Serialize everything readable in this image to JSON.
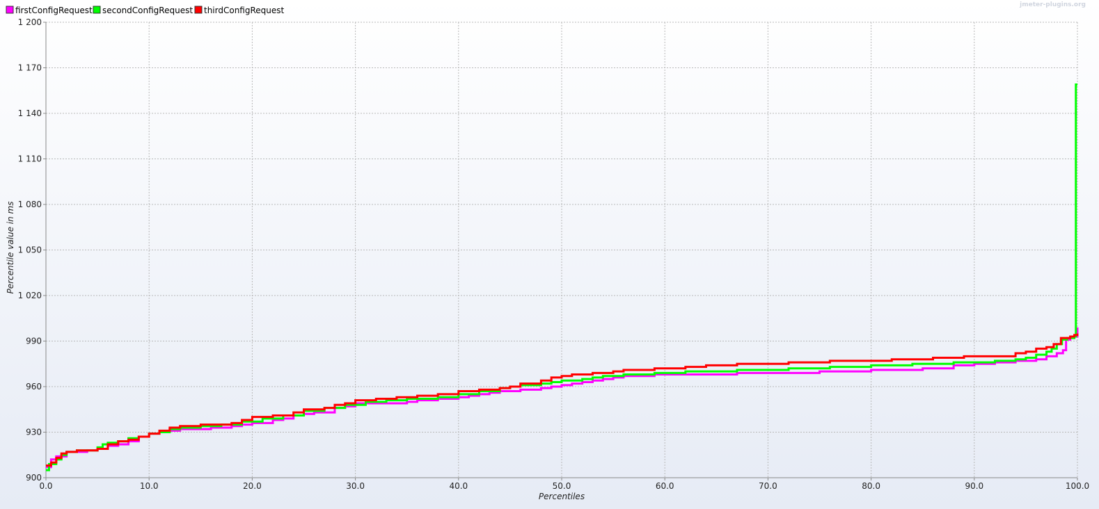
{
  "watermark": "jmeter-plugins.org",
  "chart_data": {
    "type": "line",
    "title": "",
    "xlabel": "Percentiles",
    "ylabel": "Percentile value in ms",
    "xlim": [
      0,
      100
    ],
    "ylim": [
      900,
      1200
    ],
    "x_ticks": [
      "0.0",
      "10.0",
      "20.0",
      "30.0",
      "40.0",
      "50.0",
      "60.0",
      "70.0",
      "80.0",
      "90.0",
      "100.0"
    ],
    "y_ticks": [
      "900",
      "930",
      "960",
      "990",
      "1 020",
      "1 050",
      "1 080",
      "1 110",
      "1 140",
      "1 170",
      "1 200"
    ],
    "x_tick_values": [
      0,
      10,
      20,
      30,
      40,
      50,
      60,
      70,
      80,
      90,
      100
    ],
    "y_tick_values": [
      900,
      930,
      960,
      990,
      1020,
      1050,
      1080,
      1110,
      1140,
      1170,
      1200
    ],
    "grid": true,
    "legend_position": "top-left",
    "series": [
      {
        "name": "firstConfigRequest",
        "color": "#ff00ff",
        "points": [
          [
            0,
            907
          ],
          [
            0.5,
            912
          ],
          [
            1,
            914
          ],
          [
            2,
            917
          ],
          [
            3,
            917
          ],
          [
            4,
            918
          ],
          [
            5,
            919
          ],
          [
            6,
            921
          ],
          [
            7,
            922
          ],
          [
            8,
            924
          ],
          [
            9,
            927
          ],
          [
            10,
            929
          ],
          [
            11,
            930
          ],
          [
            12,
            931
          ],
          [
            13,
            932
          ],
          [
            15,
            932
          ],
          [
            16,
            933
          ],
          [
            18,
            934
          ],
          [
            19,
            935
          ],
          [
            20,
            936
          ],
          [
            22,
            938
          ],
          [
            23,
            939
          ],
          [
            24,
            941
          ],
          [
            25,
            942
          ],
          [
            26,
            943
          ],
          [
            28,
            946
          ],
          [
            29,
            947
          ],
          [
            30,
            949
          ],
          [
            35,
            950
          ],
          [
            36,
            951
          ],
          [
            38,
            952
          ],
          [
            40,
            953
          ],
          [
            41,
            954
          ],
          [
            42,
            955
          ],
          [
            43,
            956
          ],
          [
            44,
            957
          ],
          [
            46,
            958
          ],
          [
            48,
            959
          ],
          [
            49,
            960
          ],
          [
            50,
            961
          ],
          [
            51,
            962
          ],
          [
            52,
            963
          ],
          [
            53,
            964
          ],
          [
            54,
            965
          ],
          [
            55,
            966
          ],
          [
            56,
            967
          ],
          [
            58,
            967
          ],
          [
            59,
            968
          ],
          [
            62,
            968
          ],
          [
            67,
            969
          ],
          [
            75,
            970
          ],
          [
            80,
            971
          ],
          [
            85,
            972
          ],
          [
            88,
            974
          ],
          [
            90,
            975
          ],
          [
            92,
            976
          ],
          [
            94,
            977
          ],
          [
            96,
            978
          ],
          [
            97,
            980
          ],
          [
            98,
            982
          ],
          [
            98.6,
            984
          ],
          [
            98.9,
            991
          ],
          [
            99.3,
            992
          ],
          [
            99.7,
            993
          ],
          [
            100,
            999
          ]
        ]
      },
      {
        "name": "secondConfigRequest",
        "color": "#00ff00",
        "points": [
          [
            0,
            905
          ],
          [
            0.3,
            909
          ],
          [
            1,
            912
          ],
          [
            1.5,
            915
          ],
          [
            2,
            917
          ],
          [
            3,
            918
          ],
          [
            4,
            918
          ],
          [
            5,
            920
          ],
          [
            5.5,
            922
          ],
          [
            6,
            923
          ],
          [
            7,
            924
          ],
          [
            8,
            926
          ],
          [
            9,
            927
          ],
          [
            10,
            929
          ],
          [
            11,
            930
          ],
          [
            12,
            932
          ],
          [
            13,
            933
          ],
          [
            15,
            934
          ],
          [
            17,
            935
          ],
          [
            19,
            937
          ],
          [
            21,
            939
          ],
          [
            23,
            941
          ],
          [
            25,
            944
          ],
          [
            27,
            946
          ],
          [
            29,
            948
          ],
          [
            31,
            950
          ],
          [
            33,
            951
          ],
          [
            35,
            952
          ],
          [
            38,
            953
          ],
          [
            40,
            955
          ],
          [
            42,
            957
          ],
          [
            44,
            959
          ],
          [
            45,
            960
          ],
          [
            46,
            961
          ],
          [
            48,
            962
          ],
          [
            49,
            963
          ],
          [
            50,
            964
          ],
          [
            52,
            965
          ],
          [
            53,
            966
          ],
          [
            54,
            967
          ],
          [
            56,
            968
          ],
          [
            59,
            969
          ],
          [
            62,
            970
          ],
          [
            67,
            971
          ],
          [
            72,
            972
          ],
          [
            76,
            973
          ],
          [
            80,
            974
          ],
          [
            84,
            975
          ],
          [
            88,
            976
          ],
          [
            92,
            977
          ],
          [
            94,
            978
          ],
          [
            95,
            979
          ],
          [
            96,
            981
          ],
          [
            97,
            983
          ],
          [
            97.5,
            985
          ],
          [
            98,
            988
          ],
          [
            98.5,
            991
          ],
          [
            99,
            992
          ],
          [
            99.7,
            993
          ],
          [
            99.85,
            1159
          ],
          [
            100,
            1159
          ]
        ]
      },
      {
        "name": "thirdConfigRequest",
        "color": "#ff0000",
        "points": [
          [
            0,
            908
          ],
          [
            0.5,
            910
          ],
          [
            1,
            913
          ],
          [
            1.5,
            916
          ],
          [
            2,
            917
          ],
          [
            3,
            918
          ],
          [
            4,
            918
          ],
          [
            5,
            919
          ],
          [
            6,
            922
          ],
          [
            7,
            924
          ],
          [
            8,
            925
          ],
          [
            9,
            927
          ],
          [
            10,
            929
          ],
          [
            11,
            931
          ],
          [
            12,
            933
          ],
          [
            13,
            934
          ],
          [
            15,
            935
          ],
          [
            18,
            936
          ],
          [
            19,
            938
          ],
          [
            20,
            940
          ],
          [
            22,
            941
          ],
          [
            24,
            943
          ],
          [
            25,
            945
          ],
          [
            27,
            946
          ],
          [
            28,
            948
          ],
          [
            29,
            949
          ],
          [
            30,
            951
          ],
          [
            32,
            952
          ],
          [
            34,
            953
          ],
          [
            36,
            954
          ],
          [
            38,
            955
          ],
          [
            40,
            957
          ],
          [
            42,
            958
          ],
          [
            44,
            959
          ],
          [
            45,
            960
          ],
          [
            46,
            962
          ],
          [
            48,
            964
          ],
          [
            49,
            966
          ],
          [
            50,
            967
          ],
          [
            51,
            968
          ],
          [
            53,
            969
          ],
          [
            55,
            970
          ],
          [
            56,
            971
          ],
          [
            59,
            972
          ],
          [
            62,
            973
          ],
          [
            64,
            974
          ],
          [
            67,
            975
          ],
          [
            72,
            976
          ],
          [
            76,
            977
          ],
          [
            82,
            978
          ],
          [
            86,
            979
          ],
          [
            89,
            980
          ],
          [
            94,
            982
          ],
          [
            95,
            983
          ],
          [
            96,
            985
          ],
          [
            97,
            986
          ],
          [
            97.7,
            988
          ],
          [
            98.4,
            992
          ],
          [
            99.3,
            993
          ],
          [
            99.7,
            994
          ],
          [
            100,
            995
          ]
        ]
      }
    ]
  }
}
